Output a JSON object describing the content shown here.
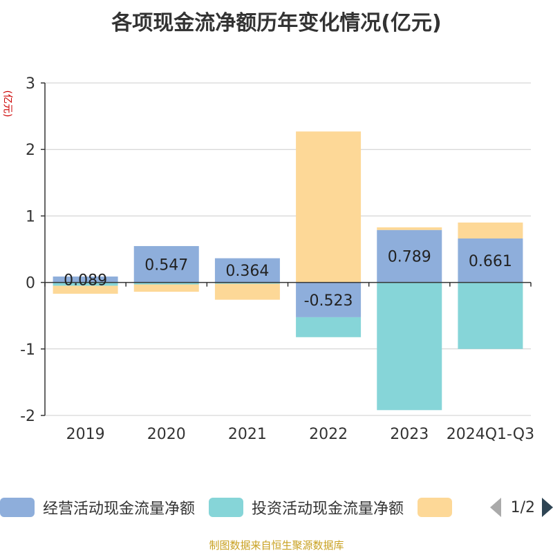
{
  "chart_data": {
    "type": "bar",
    "stacked": true,
    "title": "各项现金流净额历年变化情况(亿元)",
    "ylabel": "(亿元)",
    "categories": [
      "2019",
      "2020",
      "2021",
      "2022",
      "2023",
      "2024Q1-Q3"
    ],
    "ylim": [
      -2,
      3
    ],
    "yticks": [
      "3",
      "2",
      "1",
      "0",
      "-1",
      "-2"
    ],
    "grid": true,
    "series": [
      {
        "name": "经营活动现金流量净额",
        "color": "#8eaedb",
        "values": [
          0.089,
          0.547,
          0.364,
          -0.523,
          0.789,
          0.661
        ],
        "labels": [
          "0.089",
          "0.547",
          "0.364",
          "-0.523",
          "0.789",
          "0.661"
        ]
      },
      {
        "name": "投资活动现金流量净额",
        "color": "#86d5d8",
        "values": [
          -0.05,
          -0.03,
          -0.02,
          -0.3,
          -1.92,
          -1.0
        ]
      },
      {
        "name": "",
        "color": "#fdd897",
        "values": [
          -0.12,
          -0.11,
          -0.24,
          2.27,
          0.04,
          0.24
        ]
      }
    ],
    "legend_position": "bottom"
  },
  "legend": {
    "page": "1/2"
  },
  "source": "制图数据来自恒生聚源数据库"
}
